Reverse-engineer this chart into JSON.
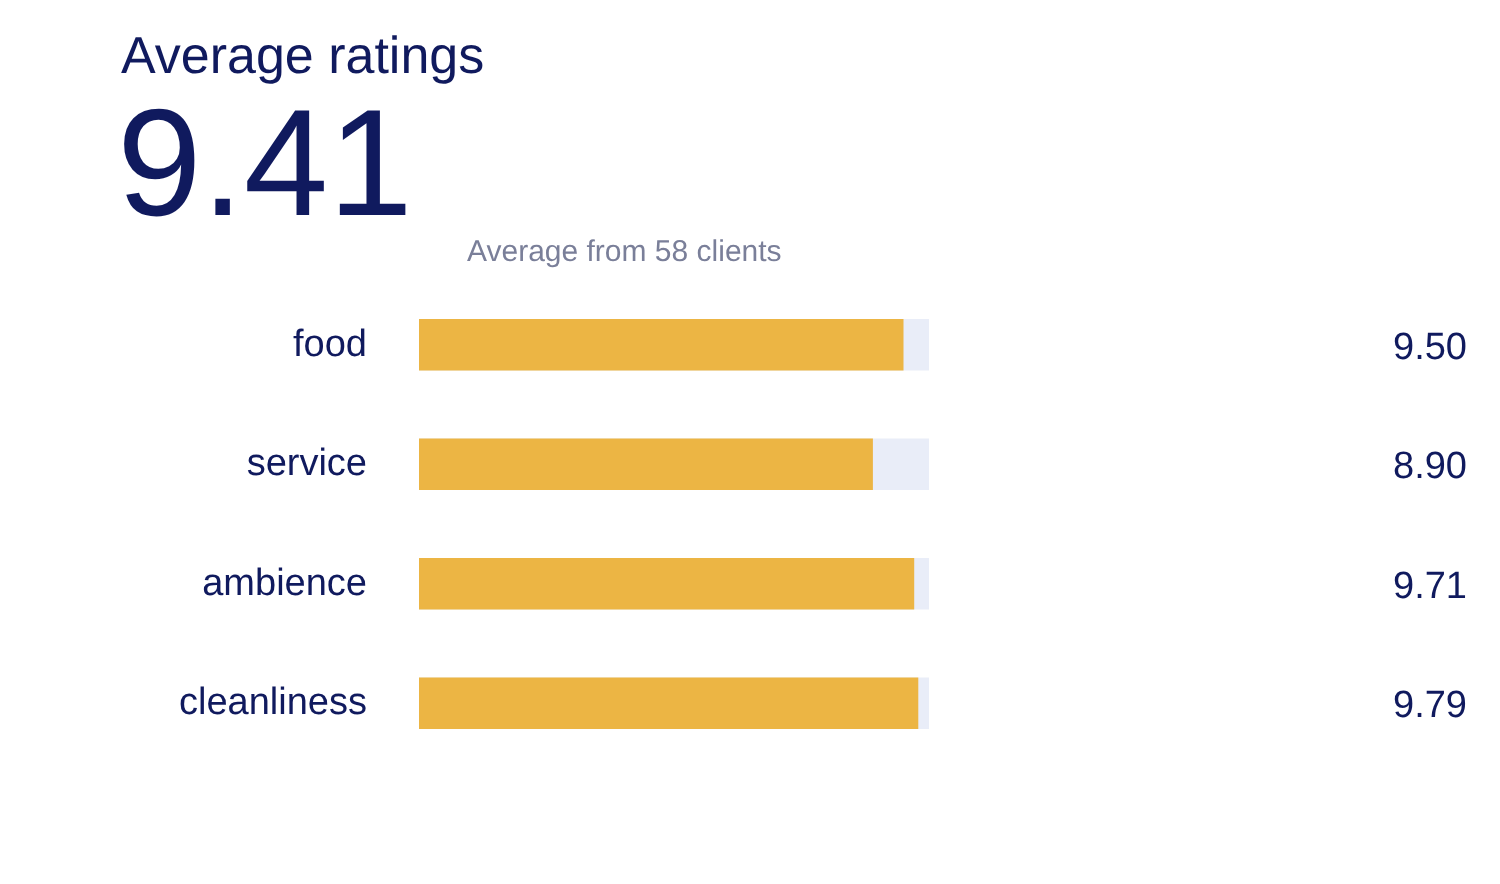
{
  "chart_data": {
    "type": "bar",
    "orientation": "horizontal",
    "title": "Average ratings",
    "annotations": [
      "9.41",
      "Average from 58 clients"
    ],
    "categories": [
      "food",
      "service",
      "ambience",
      "cleanliness"
    ],
    "values": [
      9.5,
      8.9,
      9.71,
      9.79
    ],
    "value_labels": [
      "9.50",
      "8.90",
      "9.71",
      "9.79"
    ],
    "color": "#ecb544",
    "xlim": [
      0,
      10
    ],
    "grid": false
  }
}
